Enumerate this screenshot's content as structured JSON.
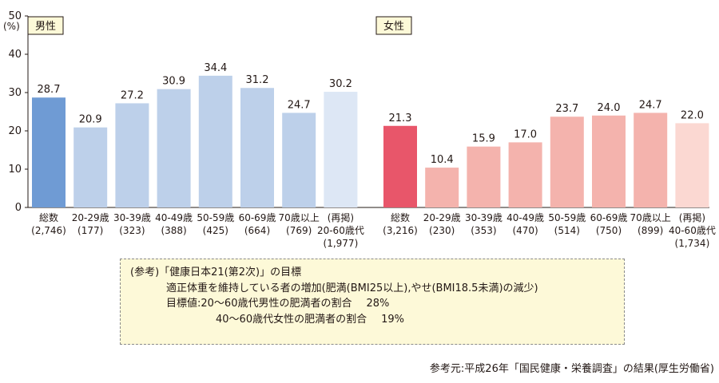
{
  "chart_data": {
    "type": "bar",
    "y_unit_label": "(%)",
    "ylim": [
      0,
      50
    ],
    "yticks": [
      0,
      10,
      20,
      30,
      40,
      50
    ],
    "grid": false,
    "colors": {
      "male_total": "#6f9bd4",
      "male": "#bdd0ea",
      "male_ref": "#dde7f5",
      "female_total": "#e8566a",
      "female": "#f4b3ad",
      "female_ref": "#fbd8d2"
    },
    "groups": [
      {
        "name": "男性",
        "categories": [
          {
            "label": [
              "総数",
              "(2,746)"
            ],
            "value": 28.7,
            "kind": "total"
          },
          {
            "label": [
              "20-29歳",
              "(177)"
            ],
            "value": 20.9,
            "kind": "age"
          },
          {
            "label": [
              "30-39歳",
              "(323)"
            ],
            "value": 27.2,
            "kind": "age"
          },
          {
            "label": [
              "40-49歳",
              "(388)"
            ],
            "value": 30.9,
            "kind": "age"
          },
          {
            "label": [
              "50-59歳",
              "(425)"
            ],
            "value": 34.4,
            "kind": "age"
          },
          {
            "label": [
              "60-69歳",
              "(664)"
            ],
            "value": 31.2,
            "kind": "age"
          },
          {
            "label": [
              "70歳以上",
              "(769)"
            ],
            "value": 24.7,
            "kind": "age"
          },
          {
            "label": [
              "(再掲)",
              "20-60歳代",
              "(1,977)"
            ],
            "value": 30.2,
            "kind": "ref"
          }
        ]
      },
      {
        "name": "女性",
        "categories": [
          {
            "label": [
              "総数",
              "(3,216)"
            ],
            "value": 21.3,
            "kind": "total"
          },
          {
            "label": [
              "20-29歳",
              "(230)"
            ],
            "value": 10.4,
            "kind": "age"
          },
          {
            "label": [
              "30-39歳",
              "(353)"
            ],
            "value": 15.9,
            "kind": "age"
          },
          {
            "label": [
              "40-49歳",
              "(470)"
            ],
            "value": 17.0,
            "kind": "age"
          },
          {
            "label": [
              "50-59歳",
              "(514)"
            ],
            "value": 23.7,
            "kind": "age"
          },
          {
            "label": [
              "60-69歳",
              "(750)"
            ],
            "value": 24.0,
            "kind": "age"
          },
          {
            "label": [
              "70歳以上",
              "(899)"
            ],
            "value": 24.7,
            "kind": "age"
          },
          {
            "label": [
              "(再掲)",
              "40-60歳代",
              "(1,734)"
            ],
            "value": 22.0,
            "kind": "ref"
          }
        ]
      }
    ]
  },
  "note": {
    "title": "(参考)「健康日本21(第2次)」の目標",
    "goal": "適正体重を維持している者の増加(肥満(BMI25以上),やせ(BMI18.5未満)の減少)",
    "target_label": "目標値:20〜60歳代男性の肥満者の割合",
    "target_male_value": "28%",
    "target_female_label": "40〜60歳代女性の肥満者の割合",
    "target_female_value": "19%"
  },
  "source": "参考元:平成26年「国民健康・栄養調査」の結果(厚生労働省)"
}
